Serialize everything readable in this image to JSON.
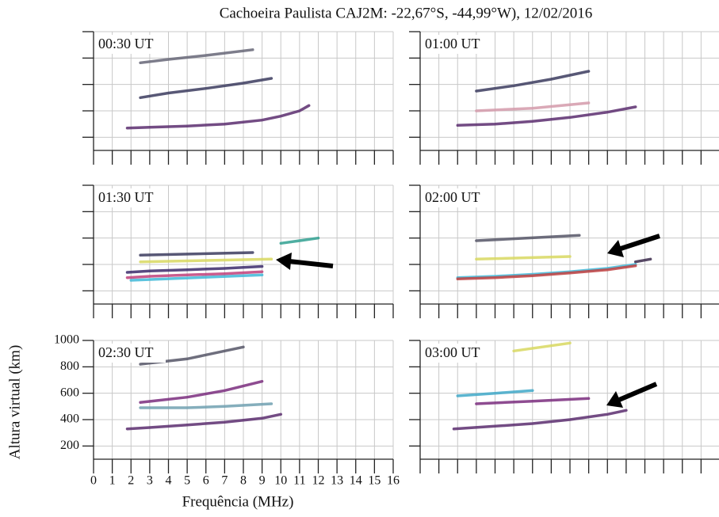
{
  "chart_data": {
    "title": "Cachoeira Paulista CAJ2M: -22,67°S, -44,99°W), 12/02/2016",
    "xlabel": "Frequência (MHz)",
    "ylabel": "Altura virtual (km)",
    "xlim": [
      0,
      16
    ],
    "ylim": [
      100,
      1000
    ],
    "xticks": [
      0,
      1,
      2,
      3,
      4,
      5,
      6,
      7,
      8,
      9,
      10,
      11,
      12,
      13,
      14,
      15,
      16
    ],
    "yticks": [
      200,
      400,
      600,
      800,
      1000
    ],
    "grid": true,
    "panels": [
      {
        "type": "line",
        "title": "00:30 UT",
        "series": [
          {
            "color": "#5a2d6e",
            "x": [
              1.8,
              3,
              5,
              7,
              9,
              10,
              11,
              11.5
            ],
            "y": [
              270,
              275,
              285,
              300,
              330,
              360,
              400,
              440
            ]
          },
          {
            "color": "#3b3b5e",
            "x": [
              2.5,
              4,
              6,
              8,
              9.5
            ],
            "y": [
              500,
              535,
              570,
              610,
              646
            ]
          },
          {
            "color": "#666677",
            "x": [
              2.5,
              4,
              6,
              8.5
            ],
            "y": [
              764,
              790,
              820,
              863
            ]
          }
        ]
      },
      {
        "type": "line",
        "title": "01:00 UT",
        "series": [
          {
            "color": "#5a2d6e",
            "x": [
              2,
              4,
              6,
              8,
              10,
              11.5
            ],
            "y": [
              290,
              300,
              320,
              350,
              390,
              430
            ]
          },
          {
            "color": "#d49aaa",
            "x": [
              3,
              6,
              9
            ],
            "y": [
              400,
              420,
              460
            ]
          },
          {
            "color": "#3b3b5e",
            "x": [
              3,
              5,
              7,
              9
            ],
            "y": [
              550,
              590,
              640,
              700
            ]
          }
        ]
      },
      {
        "type": "line",
        "title": "01:30 UT",
        "series": [
          {
            "color": "#40b8d8",
            "x": [
              2,
              9
            ],
            "y": [
              280,
              320
            ]
          },
          {
            "color": "#c0407a",
            "x": [
              1.8,
              3,
              5,
              7,
              9
            ],
            "y": [
              300,
              310,
              320,
              330,
              345
            ]
          },
          {
            "color": "#3b2a6b",
            "x": [
              1.8,
              3,
              5,
              7,
              9
            ],
            "y": [
              340,
              350,
              360,
              370,
              385
            ]
          },
          {
            "color": "#d8d860",
            "x": [
              2.5,
              9.5
            ],
            "y": [
              420,
              440
            ]
          },
          {
            "color": "#3b3b5e",
            "x": [
              2.5,
              8.5
            ],
            "y": [
              470,
              490
            ]
          },
          {
            "color": "#30a090",
            "x": [
              10,
              12
            ],
            "y": [
              560,
              600
            ]
          }
        ]
      },
      {
        "type": "line",
        "title": "02:00 UT",
        "series": [
          {
            "color": "#40b8d8",
            "x": [
              2,
              4,
              6,
              8,
              10,
              11.5
            ],
            "y": [
              300,
              310,
              325,
              345,
              370,
              400
            ]
          },
          {
            "color": "#c04040",
            "x": [
              2,
              4,
              6,
              8,
              10,
              11.5
            ],
            "y": [
              290,
              300,
              315,
              335,
              360,
              390
            ]
          },
          {
            "color": "#d8d860",
            "x": [
              3,
              8
            ],
            "y": [
              440,
              460
            ]
          },
          {
            "color": "#555566",
            "x": [
              3,
              8.5
            ],
            "y": [
              580,
              620
            ]
          },
          {
            "color": "#3b2a4b",
            "x": [
              11.5,
              12.3
            ],
            "y": [
              420,
              440
            ]
          }
        ]
      },
      {
        "type": "line",
        "title": "02:30 UT",
        "series": [
          {
            "color": "#5a2d6e",
            "x": [
              1.8,
              3,
              5,
              7,
              9,
              10
            ],
            "y": [
              330,
              340,
              360,
              380,
              410,
              440
            ]
          },
          {
            "color": "#70a0b0",
            "x": [
              2.5,
              5,
              7,
              9.5
            ],
            "y": [
              490,
              490,
              500,
              520
            ]
          },
          {
            "color": "#7a2d7e",
            "x": [
              2.5,
              5,
              7,
              9
            ],
            "y": [
              530,
              570,
              620,
              690
            ]
          },
          {
            "color": "#555566",
            "x": [
              2.5,
              5,
              8
            ],
            "y": [
              820,
              860,
              950
            ]
          }
        ]
      },
      {
        "type": "line",
        "title": "03:00 UT",
        "series": [
          {
            "color": "#5a2d6e",
            "x": [
              1.8,
              4,
              6,
              8,
              10,
              11
            ],
            "y": [
              330,
              350,
              370,
              400,
              440,
              470
            ]
          },
          {
            "color": "#7a2d7e",
            "x": [
              3,
              6,
              9
            ],
            "y": [
              520,
              540,
              560
            ]
          },
          {
            "color": "#40a8c8",
            "x": [
              2,
              4,
              6
            ],
            "y": [
              580,
              600,
              620
            ]
          },
          {
            "color": "#d8d860",
            "x": [
              5,
              8
            ],
            "y": [
              920,
              980
            ]
          }
        ]
      }
    ]
  }
}
